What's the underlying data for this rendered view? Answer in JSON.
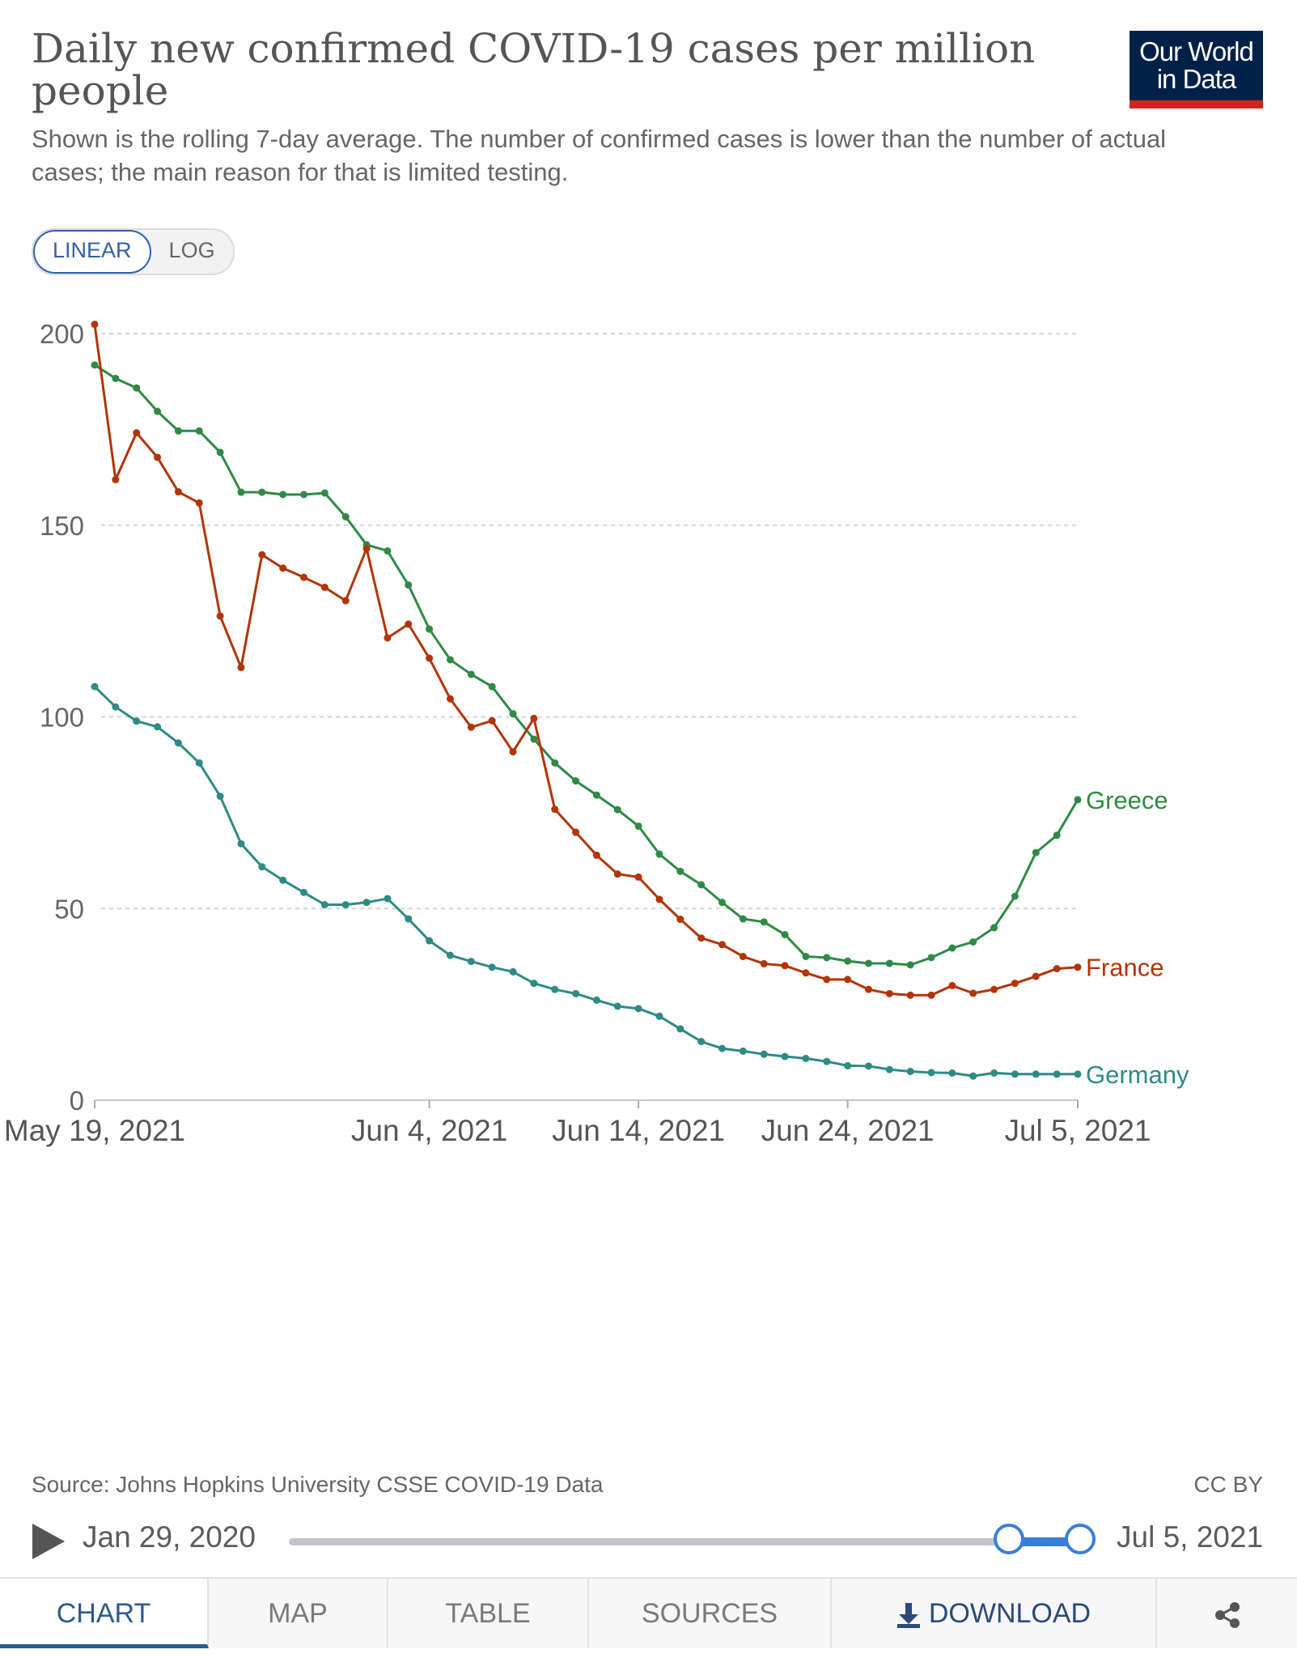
{
  "header": {
    "title": "Daily new confirmed COVID-19 cases per million people",
    "subtitle": "Shown is the rolling 7-day average. The number of confirmed cases is lower than the number of actual cases; the main reason for that is limited testing.",
    "logo_line1": "Our World",
    "logo_line2": "in Data",
    "logo_bar_color": "#ce261e",
    "logo_bg_color": "#002147"
  },
  "scale": {
    "linear_label": "LINEAR",
    "log_label": "LOG",
    "selected": "LINEAR"
  },
  "chart_data": {
    "type": "line",
    "title": "Daily new confirmed COVID-19 cases per million people",
    "ylim": [
      0,
      200
    ],
    "y_ticks": [
      0,
      50,
      100,
      150,
      200
    ],
    "x_ticks": [
      "May 19, 2021",
      "Jun 4, 2021",
      "Jun 14, 2021",
      "Jun 24, 2021",
      "Jul 5, 2021"
    ],
    "x_start": "2021-05-19",
    "x_end": "2021-07-05",
    "grid": "horizontal dashed",
    "series": [
      {
        "name": "Greece",
        "color": "#2f8a46",
        "values": [
          191.8,
          188.3,
          185.8,
          179.7,
          174.6,
          174.6,
          169.0,
          158.6,
          158.6,
          158.0,
          158.0,
          158.4,
          152.2,
          144.9,
          143.3,
          134.4,
          122.9,
          114.9,
          111.1,
          107.9,
          100.8,
          94.2,
          88.0,
          83.3,
          79.6,
          75.8,
          71.5,
          64.2,
          59.7,
          56.2,
          51.6,
          47.3,
          46.5,
          43.2,
          37.5,
          37.2,
          36.3,
          35.7,
          35.7,
          35.3,
          37.2,
          39.7,
          41.3,
          45.0,
          53.2,
          64.6,
          69.1,
          78.4
        ]
      },
      {
        "name": "France",
        "color": "#b13507",
        "values": [
          202.4,
          161.9,
          174.1,
          167.7,
          158.7,
          155.8,
          126.3,
          112.9,
          142.3,
          138.8,
          136.4,
          133.8,
          130.3,
          143.9,
          120.6,
          124.2,
          115.3,
          104.7,
          97.3,
          99.0,
          90.9,
          99.6,
          75.9,
          69.9,
          63.9,
          59.0,
          58.2,
          52.4,
          47.2,
          42.3,
          40.6,
          37.5,
          35.6,
          35.1,
          33.2,
          31.5,
          31.5,
          28.9,
          27.8,
          27.4,
          27.4,
          29.9,
          27.9,
          28.9,
          30.5,
          32.3,
          34.3,
          34.7
        ]
      },
      {
        "name": "Germany",
        "color": "#2e8b84",
        "values": [
          107.9,
          102.6,
          98.9,
          97.4,
          93.2,
          88.0,
          79.3,
          66.9,
          60.9,
          57.4,
          54.2,
          51.0,
          51.0,
          51.6,
          52.6,
          47.3,
          41.6,
          37.8,
          36.2,
          34.7,
          33.5,
          30.5,
          28.9,
          27.8,
          26.1,
          24.5,
          23.9,
          21.9,
          18.6,
          15.3,
          13.5,
          12.8,
          12.0,
          11.4,
          10.9,
          10.1,
          9.0,
          8.9,
          8.0,
          7.5,
          7.2,
          7.1,
          6.3,
          7.1,
          6.8,
          6.8,
          6.8,
          6.8
        ]
      }
    ]
  },
  "footer": {
    "source": "Source: Johns Hopkins University CSSE COVID-19 Data",
    "license": "CC BY"
  },
  "timeline": {
    "start_label": "Jan 29, 2020",
    "end_label": "Jul 5, 2021"
  },
  "tabs": {
    "chart": "CHART",
    "map": "MAP",
    "table": "TABLE",
    "sources": "SOURCES",
    "download": "DOWNLOAD"
  }
}
